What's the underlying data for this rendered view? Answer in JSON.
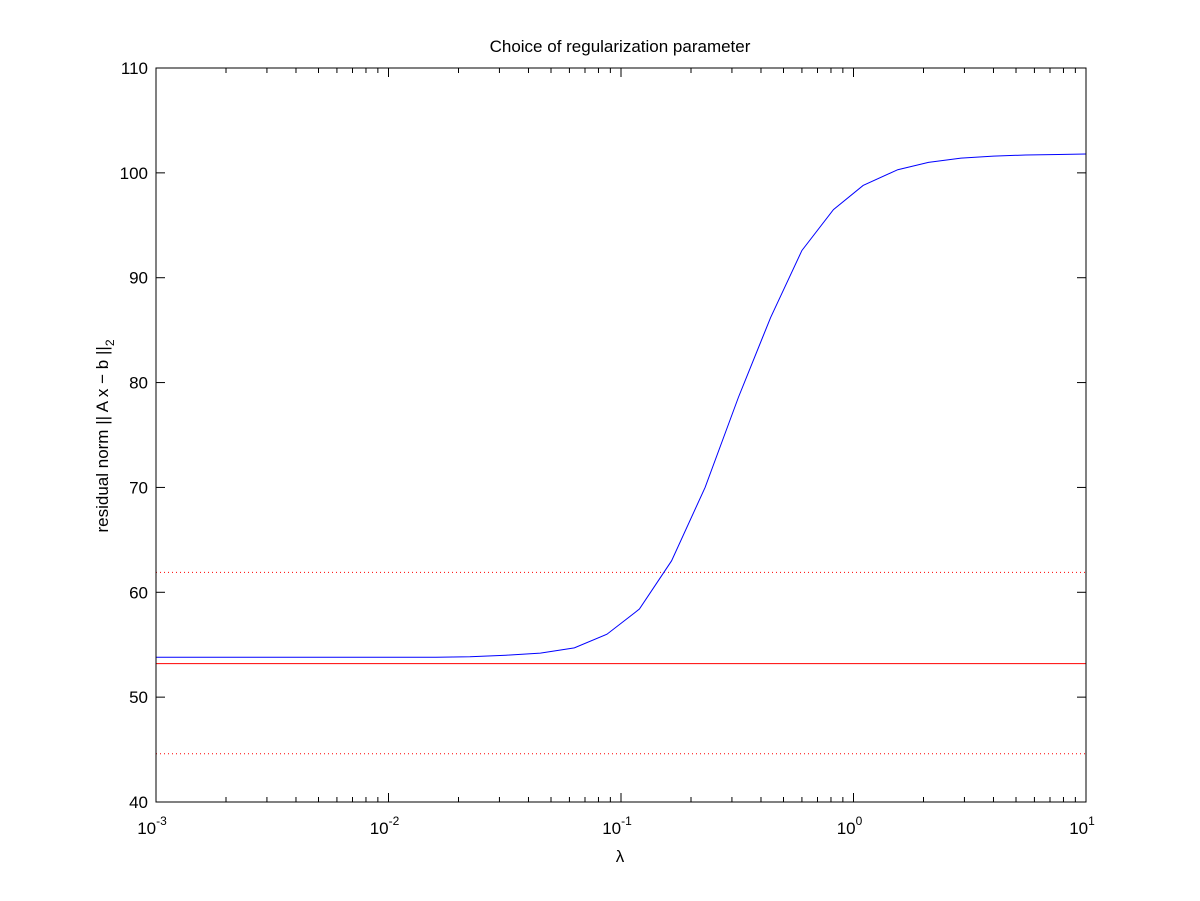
{
  "chart_data": {
    "type": "line",
    "title": "Choice of regularization parameter",
    "xlabel": "λ",
    "ylabel_main": "residual norm || A x − b ||",
    "ylabel_sub": "2",
    "x_scale": "log",
    "xlim": [
      0.001,
      10
    ],
    "ylim": [
      40,
      110
    ],
    "x_tick_base": "10",
    "x_ticks": [
      {
        "value": 0.001,
        "exp": "-3"
      },
      {
        "value": 0.01,
        "exp": "-2"
      },
      {
        "value": 0.1,
        "exp": "-1"
      },
      {
        "value": 1,
        "exp": "0"
      },
      {
        "value": 10,
        "exp": "1"
      }
    ],
    "y_ticks": [
      "40",
      "50",
      "60",
      "70",
      "80",
      "90",
      "100",
      "110"
    ],
    "grid": false,
    "series": [
      {
        "style": "solid",
        "color": "#0000ff",
        "x": [
          0.001,
          0.0014,
          0.002,
          0.0028,
          0.004,
          0.0056,
          0.008,
          0.0112,
          0.016,
          0.0224,
          0.032,
          0.045,
          0.063,
          0.087,
          0.12,
          0.165,
          0.23,
          0.32,
          0.44,
          0.6,
          0.82,
          1.1,
          1.55,
          2.1,
          2.9,
          4.0,
          5.5,
          7.6,
          10
        ],
        "y": [
          53.8,
          53.8,
          53.8,
          53.8,
          53.8,
          53.8,
          53.8,
          53.8,
          53.8,
          53.85,
          54.0,
          54.2,
          54.7,
          56.0,
          58.4,
          63.0,
          70.0,
          78.6,
          86.2,
          92.6,
          96.5,
          98.8,
          100.3,
          101.0,
          101.4,
          101.6,
          101.7,
          101.75,
          101.8
        ]
      }
    ],
    "reference_lines": [
      {
        "y": 53.2,
        "style": "solid",
        "color": "#ff0000"
      },
      {
        "y": 61.9,
        "style": "dotted",
        "color": "#ff0000"
      },
      {
        "y": 44.6,
        "style": "dotted",
        "color": "#ff0000"
      }
    ]
  }
}
